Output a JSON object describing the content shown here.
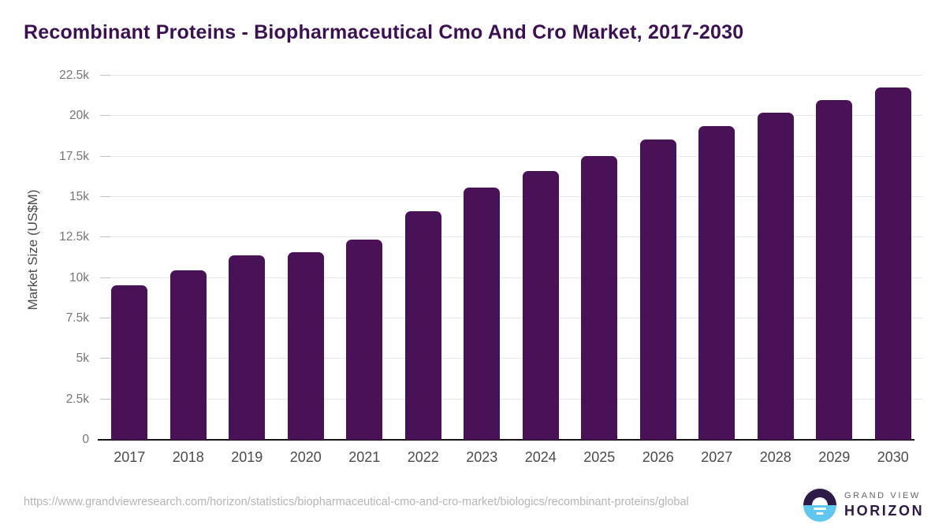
{
  "header": {
    "title": "Recombinant Proteins - Biopharmaceutical Cmo And Cro Market, 2017-2030"
  },
  "chart_data": {
    "type": "bar",
    "title": "Recombinant Proteins - Biopharmaceutical Cmo And Cro Market, 2017-2030",
    "categories": [
      "2017",
      "2018",
      "2019",
      "2020",
      "2021",
      "2022",
      "2023",
      "2024",
      "2025",
      "2026",
      "2027",
      "2028",
      "2029",
      "2030"
    ],
    "values": [
      9530,
      10470,
      11390,
      11600,
      12380,
      14110,
      15570,
      16630,
      17520,
      18540,
      19390,
      20230,
      21000,
      21770
    ],
    "xlabel": "",
    "ylabel": "Market Size (US$M)",
    "ylim": [
      0,
      22500
    ],
    "ytick_step": 2500,
    "ytick_labels": [
      "0",
      "2.5k",
      "5k",
      "7.5k",
      "10k",
      "12.5k",
      "15k",
      "17.5k",
      "20k",
      "22.5k"
    ],
    "grid": true,
    "legend_position": "none",
    "bar_color": "#491256"
  },
  "colors": {
    "title": "#3b1153",
    "bar": "#491256",
    "gridline": "#e8e8e8",
    "axis_line": "#161616",
    "y_tick_text": "#757575",
    "x_tick_text": "#4b4b4b",
    "url_text": "#b5b5b5",
    "logo_purple": "#2e1a47",
    "logo_blue": "#5ec8f2"
  },
  "footer": {
    "source_url": "https://www.grandviewresearch.com/horizon/statistics/biopharmaceutical-cmo-and-cro-market/biologics/recombinant-proteins/global",
    "logo": {
      "line1": "GRAND VIEW",
      "line2": "HORIZON"
    }
  }
}
